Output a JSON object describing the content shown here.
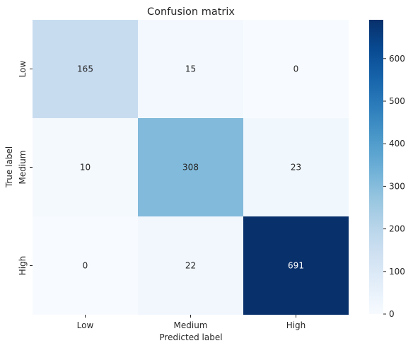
{
  "chart_data": {
    "type": "heatmap",
    "title": "Confusion matrix",
    "xlabel": "Predicted label",
    "ylabel": "True label",
    "x_categories": [
      "Low",
      "Medium",
      "High"
    ],
    "y_categories": [
      "Low",
      "Medium",
      "High"
    ],
    "values": [
      [
        165,
        15,
        0
      ],
      [
        10,
        308,
        23
      ],
      [
        0,
        22,
        691
      ]
    ],
    "colormap": "Blues",
    "color_range": [
      0,
      691
    ],
    "colorbar_ticks": [
      0,
      100,
      200,
      300,
      400,
      500,
      600
    ]
  }
}
